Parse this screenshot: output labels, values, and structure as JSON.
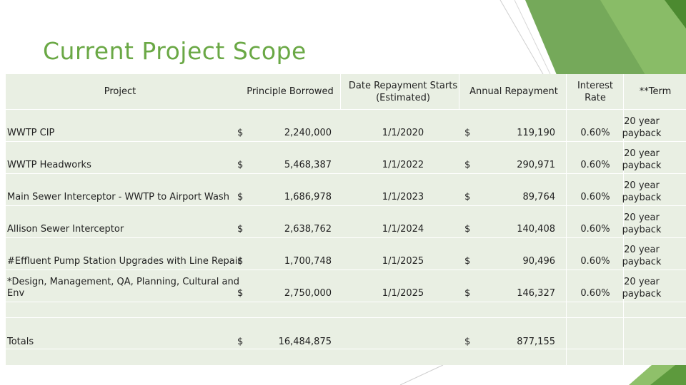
{
  "slide": {
    "title": "Current Project Scope"
  },
  "theme": {
    "title_color": "#6aa845",
    "table_bg": "#e9efe3",
    "accent_dark": "#5d9a3d",
    "accent_light": "#8fc06a"
  },
  "table": {
    "headers": {
      "project": "Project",
      "principle": "Principle Borrowed",
      "date_line1": "Date Repayment Starts",
      "date_line2": "(Estimated)",
      "annual": "Annual Repayment",
      "rate_line1": "Interest",
      "rate_line2": "Rate",
      "term": "**Term"
    },
    "rows": [
      {
        "project_line1": "WWTP CIP",
        "project_line2": "",
        "currency1": "$",
        "principle": "2,240,000",
        "date": "1/1/2020",
        "currency2": "$",
        "annual": "119,190",
        "rate": "0.60%",
        "term_line1": "20 year",
        "term_line2": "payback"
      },
      {
        "project_line1": "WWTP Headworks",
        "project_line2": "",
        "currency1": "$",
        "principle": "5,468,387",
        "date": "1/1/2022",
        "currency2": "$",
        "annual": "290,971",
        "rate": "0.60%",
        "term_line1": "20 year",
        "term_line2": "payback"
      },
      {
        "project_line1": "Main Sewer Interceptor - WWTP to Airport Wash",
        "project_line2": "",
        "currency1": "$",
        "principle": "1,686,978",
        "date": "1/1/2023",
        "currency2": "$",
        "annual": "89,764",
        "rate": "0.60%",
        "term_line1": "20 year",
        "term_line2": "payback"
      },
      {
        "project_line1": "Allison Sewer Interceptor",
        "project_line2": "",
        "currency1": "$",
        "principle": "2,638,762",
        "date": "1/1/2024",
        "currency2": "$",
        "annual": "140,408",
        "rate": "0.60%",
        "term_line1": "20 year",
        "term_line2": "payback"
      },
      {
        "project_line1": "#Effluent Pump Station Upgrades with Line Repair",
        "project_line2": "",
        "currency1": "$",
        "principle": "1,700,748",
        "date": "1/1/2025",
        "currency2": "$",
        "annual": "90,496",
        "rate": "0.60%",
        "term_line1": "20 year",
        "term_line2": "payback"
      },
      {
        "project_line1": "*Design, Management, QA, Planning, Cultural and",
        "project_line2": "Env",
        "currency1": "$",
        "principle": "2,750,000",
        "date": "1/1/2025",
        "currency2": "$",
        "annual": "146,327",
        "rate": "0.60%",
        "term_line1": "20 year",
        "term_line2": "payback"
      }
    ],
    "totals": {
      "label": "Totals",
      "currency1": "$",
      "principle": "16,484,875",
      "currency2": "$",
      "annual": "877,155"
    }
  }
}
